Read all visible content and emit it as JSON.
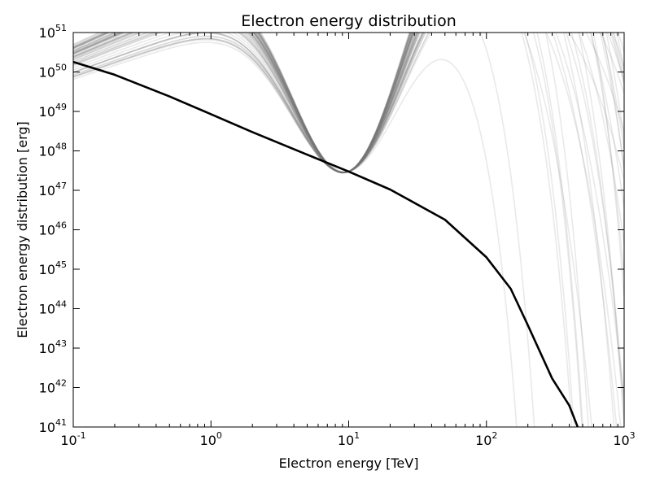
{
  "chart_data": {
    "type": "line",
    "title": "Electron energy distribution",
    "xlabel": "Electron energy [TeV]",
    "ylabel": "Electron energy distribution [erg]",
    "x_scale": "log",
    "y_scale": "log",
    "xlim": [
      0.1,
      1000
    ],
    "ylim": [
      1e+41,
      1e+51
    ],
    "grid": false,
    "legend": "none",
    "x_ticks": [
      {
        "base": "10",
        "exp": "-1"
      },
      {
        "base": "10",
        "exp": "0"
      },
      {
        "base": "10",
        "exp": "1"
      },
      {
        "base": "10",
        "exp": "2"
      },
      {
        "base": "10",
        "exp": "3"
      }
    ],
    "y_ticks": [
      {
        "base": "10",
        "exp": "41"
      },
      {
        "base": "10",
        "exp": "42"
      },
      {
        "base": "10",
        "exp": "43"
      },
      {
        "base": "10",
        "exp": "44"
      },
      {
        "base": "10",
        "exp": "45"
      },
      {
        "base": "10",
        "exp": "46"
      },
      {
        "base": "10",
        "exp": "47"
      },
      {
        "base": "10",
        "exp": "48"
      },
      {
        "base": "10",
        "exp": "49"
      },
      {
        "base": "10",
        "exp": "50"
      },
      {
        "base": "10",
        "exp": "51"
      }
    ],
    "best_fit": {
      "color": "#000000",
      "x": [
        0.1,
        0.2,
        0.5,
        1,
        2,
        5,
        10,
        20,
        50,
        100,
        150,
        200,
        300,
        400,
        460
      ],
      "y": [
        1.8e+50,
        8.5e+49,
        2.4e+49,
        8.5e+48,
        3e+48,
        8e+47,
        3e+47,
        1.05e+47,
        1.8e+46,
        2e+45,
        3.2e+44,
        3.8e+43,
        1.7e+42,
        3.5e+41,
        1e+41
      ]
    },
    "samples": {
      "color": "#777777",
      "count": 60,
      "x_range": [
        0.1,
        1000
      ],
      "y_at_0.1_range": [
        6.5e+49,
        5e+50
      ],
      "y_at_10": 3e+47,
      "cutoff_crossing_1e41_range": [
        330,
        860
      ]
    }
  }
}
